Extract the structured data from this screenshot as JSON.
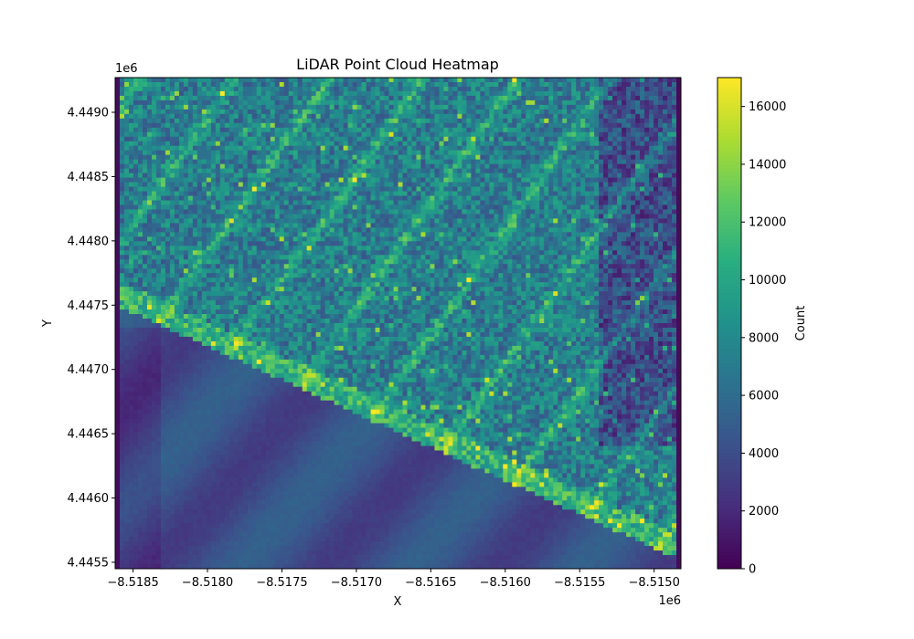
{
  "chart_data": {
    "type": "heatmap",
    "title": "LiDAR Point Cloud Heatmap",
    "xlabel": "X",
    "ylabel": "Y",
    "x_offset_label": "1e6",
    "y_offset_label": "1e6",
    "xlim": [
      -8.51862,
      -8.51482
    ],
    "ylim": [
      4.44545,
      4.44927
    ],
    "x_ticks": [
      -8.5185,
      -8.518,
      -8.5175,
      -8.517,
      -8.5165,
      -8.516,
      -8.5155,
      -8.515
    ],
    "x_tick_labels": [
      "−8.5185",
      "−8.5180",
      "−8.5175",
      "−8.5170",
      "−8.5165",
      "−8.5160",
      "−8.5155",
      "−8.5150"
    ],
    "y_ticks": [
      4.4455,
      4.446,
      4.4465,
      4.447,
      4.4475,
      4.448,
      4.4485,
      4.449
    ],
    "y_tick_labels": [
      "4.4455",
      "4.4460",
      "4.4465",
      "4.4470",
      "4.4475",
      "4.4480",
      "4.4485",
      "4.4490"
    ],
    "colorbar": {
      "label": "Count",
      "colormap": "viridis",
      "range": [
        0,
        17000
      ],
      "ticks": [
        0,
        2000,
        4000,
        6000,
        8000,
        10000,
        12000,
        14000,
        16000
      ],
      "tick_labels": [
        "0",
        "2000",
        "4000",
        "6000",
        "8000",
        "10000",
        "12000",
        "14000",
        "16000"
      ]
    },
    "grid": false
  }
}
